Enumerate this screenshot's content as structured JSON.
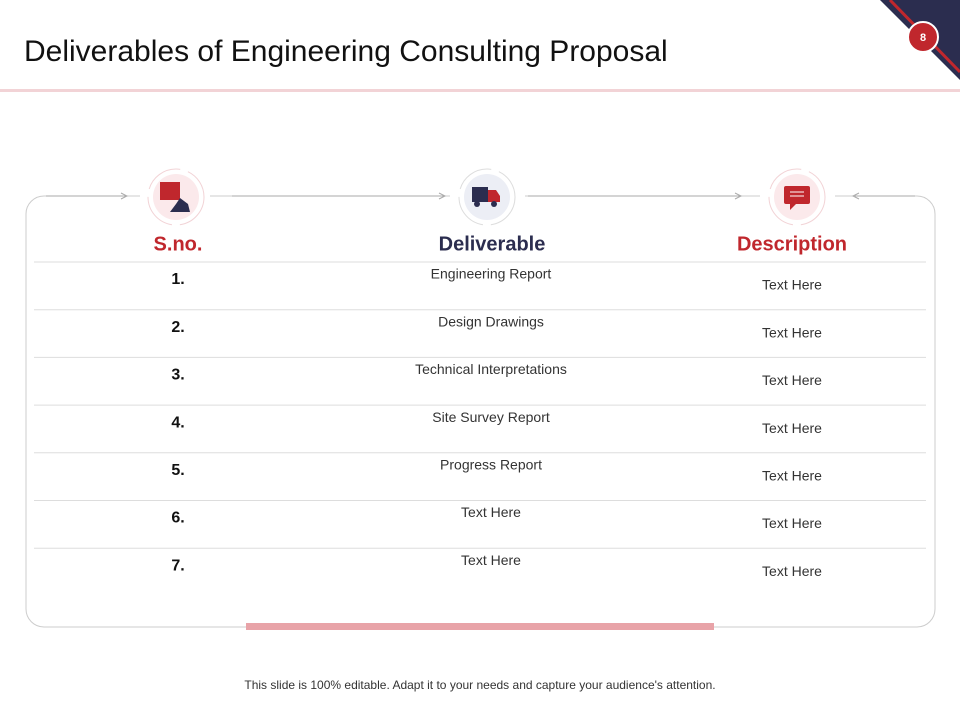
{
  "header": {
    "title": "Deliverables of Engineering Consulting Proposal",
    "page_number": "8"
  },
  "table": {
    "columns": [
      "S.no.",
      "Deliverable",
      "Description"
    ],
    "rows": [
      [
        "1.",
        "Engineering Report",
        "Text Here"
      ],
      [
        "2.",
        "Design Drawings",
        "Text Here"
      ],
      [
        "3.",
        "Technical Interpretations",
        "Text Here"
      ],
      [
        "4.",
        "Site Survey Report",
        "Text Here"
      ],
      [
        "5.",
        "Progress Report",
        "Text Here"
      ],
      [
        "6.",
        "Text Here",
        "Text Here"
      ],
      [
        "7.",
        "Text Here",
        "Text Here"
      ]
    ]
  },
  "footer": {
    "note": "This slide is 100% editable. Adapt it to your needs and capture your audience's attention."
  }
}
